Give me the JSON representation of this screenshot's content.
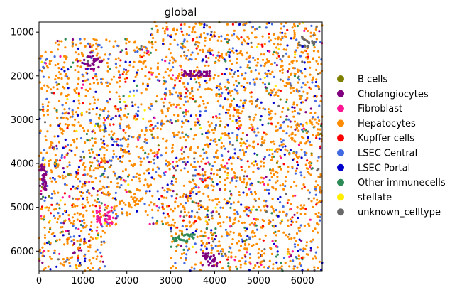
{
  "chart_data": {
    "type": "scatter",
    "title": "global",
    "xlabel": "",
    "ylabel": "",
    "xlim": [
      0,
      6450
    ],
    "ylim": [
      6450,
      770
    ],
    "y_inverted": true,
    "xticks": [
      0,
      1000,
      2000,
      3000,
      4000,
      5000,
      6000
    ],
    "yticks": [
      1000,
      2000,
      3000,
      4000,
      5000,
      6000
    ],
    "grid": false,
    "legend_position": "right",
    "series": [
      {
        "name": "B cells",
        "color": "#808000",
        "approx_share": 0.01
      },
      {
        "name": "Cholangiocytes",
        "color": "#800080",
        "approx_share": 0.03
      },
      {
        "name": "Fibroblast",
        "color": "#ff1493",
        "approx_share": 0.03
      },
      {
        "name": "Hepatocytes",
        "color": "#ff8c00",
        "approx_share": 0.6
      },
      {
        "name": "Kupffer cells",
        "color": "#ff0000",
        "approx_share": 0.04
      },
      {
        "name": "LSEC Central",
        "color": "#4169e1",
        "approx_share": 0.13
      },
      {
        "name": "LSEC Portal",
        "color": "#0000cd",
        "approx_share": 0.06
      },
      {
        "name": "Other immunecells",
        "color": "#2e8b57",
        "approx_share": 0.04
      },
      {
        "name": "stellate",
        "color": "#ffee00",
        "approx_share": 0.02
      },
      {
        "name": "unknown_celltype",
        "color": "#696969",
        "approx_share": 0.04
      }
    ]
  }
}
